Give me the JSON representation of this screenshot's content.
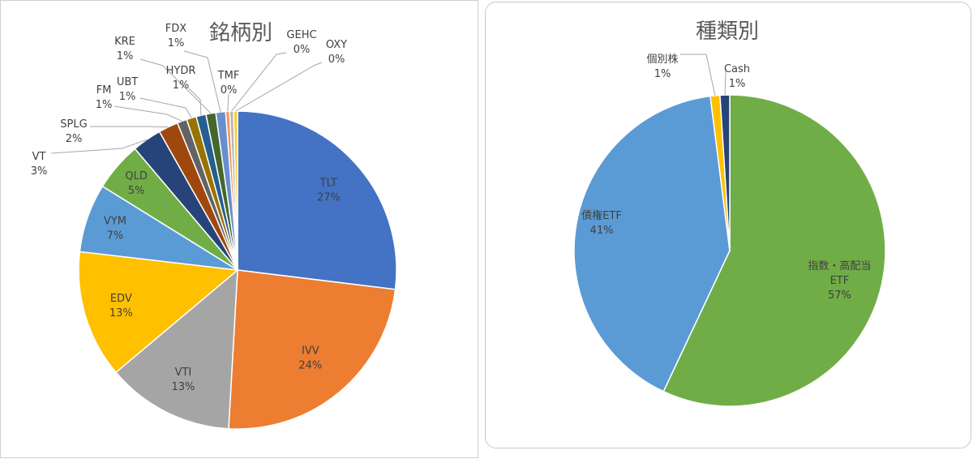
{
  "chart_data": [
    {
      "type": "pie",
      "title": "銘柄別",
      "colors": {
        "TLT": "#4472C4",
        "IVV": "#ED7D31",
        "VTI": "#A5A5A5",
        "EDV": "#FFC000",
        "VYM": "#5B9BD5",
        "QLD": "#70AD47",
        "VT": "#264478",
        "SPLG": "#9E480E",
        "FM": "#636363",
        "UBT": "#997300",
        "HYDR": "#255E91",
        "KRE": "#43682B",
        "FDX": "#698ED0",
        "TMF": "#F1975A",
        "GEHC": "#B7B7B7",
        "OXY": "#FFCD33"
      },
      "slices": [
        {
          "label": "TLT",
          "value": 27,
          "pct": "27%"
        },
        {
          "label": "IVV",
          "value": 24,
          "pct": "24%"
        },
        {
          "label": "VTI",
          "value": 13,
          "pct": "13%"
        },
        {
          "label": "EDV",
          "value": 13,
          "pct": "13%"
        },
        {
          "label": "VYM",
          "value": 7,
          "pct": "7%"
        },
        {
          "label": "QLD",
          "value": 5,
          "pct": "5%"
        },
        {
          "label": "VT",
          "value": 3,
          "pct": "3%"
        },
        {
          "label": "SPLG",
          "value": 2,
          "pct": "2%"
        },
        {
          "label": "FM",
          "value": 1,
          "pct": "1%"
        },
        {
          "label": "UBT",
          "value": 1,
          "pct": "1%"
        },
        {
          "label": "HYDR",
          "value": 1,
          "pct": "1%"
        },
        {
          "label": "KRE",
          "value": 1,
          "pct": "1%"
        },
        {
          "label": "FDX",
          "value": 1,
          "pct": "1%"
        },
        {
          "label": "TMF",
          "value": 0.4,
          "pct": "0%"
        },
        {
          "label": "GEHC",
          "value": 0.4,
          "pct": "0%"
        },
        {
          "label": "OXY",
          "value": 0.4,
          "pct": "0%"
        }
      ]
    },
    {
      "type": "pie",
      "title": "種類別",
      "colors": {
        "指数・高配当ETF": "#70AD47",
        "債権ETF": "#5B9BD5",
        "個別株": "#FFC000",
        "Cash": "#264478"
      },
      "slices": [
        {
          "label": "指数・高配当ETF",
          "value": 57,
          "pct": "57%"
        },
        {
          "label": "債権ETF",
          "value": 41,
          "pct": "41%"
        },
        {
          "label": "個別株",
          "value": 1,
          "pct": "1%"
        },
        {
          "label": "Cash",
          "value": 1,
          "pct": "1%"
        }
      ]
    }
  ]
}
